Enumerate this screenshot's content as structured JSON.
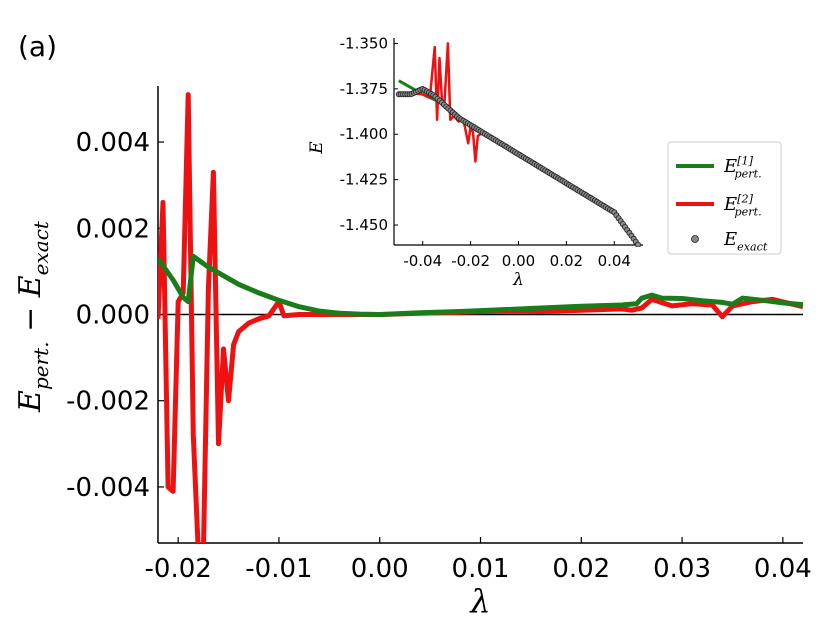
{
  "panel_label": "(a)",
  "chart_data": [
    {
      "type": "line",
      "title": "",
      "xlabel": "λ",
      "ylabel": "E_pert. − E_exact",
      "xlim": [
        -0.022,
        0.042
      ],
      "ylim": [
        -0.0053,
        0.0053
      ],
      "xticks": [
        -0.02,
        -0.01,
        0.0,
        0.01,
        0.02,
        0.03,
        0.04
      ],
      "xtick_labels": [
        "-0.02",
        "-0.01",
        "0.00",
        "0.01",
        "0.02",
        "0.03",
        "0.04"
      ],
      "yticks": [
        0.004,
        0.002,
        0.0,
        -0.002,
        -0.004
      ],
      "ytick_labels": [
        "0.004",
        "0.002",
        "0.000",
        "-0.002",
        "-0.004"
      ],
      "zero_line": true,
      "series": [
        {
          "name": "E_pert.^[1]",
          "color": "#1a7d1a",
          "points": [
            [
              -0.022,
              0.0013
            ],
            [
              -0.0205,
              0.0008
            ],
            [
              -0.0195,
              0.0004
            ],
            [
              -0.019,
              0.0003
            ],
            [
              -0.0185,
              0.00135
            ],
            [
              -0.017,
              0.0011
            ],
            [
              -0.0155,
              0.0009
            ],
            [
              -0.014,
              0.0007
            ],
            [
              -0.012,
              0.0005
            ],
            [
              -0.01,
              0.00033
            ],
            [
              -0.008,
              0.00018
            ],
            [
              -0.006,
              8e-05
            ],
            [
              -0.004,
              3e-05
            ],
            [
              -0.002,
              1e-05
            ],
            [
              0.0,
              0.0
            ],
            [
              0.004,
              4e-05
            ],
            [
              0.008,
              7e-05
            ],
            [
              0.012,
              0.00011
            ],
            [
              0.016,
              0.00015
            ],
            [
              0.02,
              0.00019
            ],
            [
              0.024,
              0.00022
            ],
            [
              0.0255,
              0.00025
            ],
            [
              0.026,
              0.00038
            ],
            [
              0.027,
              0.00045
            ],
            [
              0.028,
              0.00038
            ],
            [
              0.03,
              0.00037
            ],
            [
              0.032,
              0.00032
            ],
            [
              0.034,
              0.00028
            ],
            [
              0.035,
              0.00024
            ],
            [
              0.036,
              0.00038
            ],
            [
              0.038,
              0.00033
            ],
            [
              0.04,
              0.00027
            ],
            [
              0.042,
              0.00023
            ]
          ]
        },
        {
          "name": "E_pert.^[2]",
          "color": "#ee1111",
          "points": [
            [
              -0.022,
              -0.0001
            ],
            [
              -0.0215,
              0.0026
            ],
            [
              -0.021,
              -0.004
            ],
            [
              -0.0205,
              -0.0041
            ],
            [
              -0.02,
              0.0003
            ],
            [
              -0.0195,
              0.0005
            ],
            [
              -0.019,
              0.0051
            ],
            [
              -0.0185,
              -0.0028
            ],
            [
              -0.018,
              -0.0055
            ],
            [
              -0.0175,
              -0.0055
            ],
            [
              -0.017,
              0.0006
            ],
            [
              -0.0165,
              0.0033
            ],
            [
              -0.016,
              -0.003
            ],
            [
              -0.0155,
              -0.0008
            ],
            [
              -0.015,
              -0.002
            ],
            [
              -0.0145,
              -0.0007
            ],
            [
              -0.014,
              -0.0004
            ],
            [
              -0.013,
              -0.0002
            ],
            [
              -0.012,
              -0.0001
            ],
            [
              -0.011,
              -3e-05
            ],
            [
              -0.01,
              0.0003
            ],
            [
              -0.0095,
              -3e-05
            ],
            [
              -0.008,
              0.0
            ],
            [
              -0.004,
              0.0
            ],
            [
              0.0,
              0.0
            ],
            [
              0.004,
              3e-05
            ],
            [
              0.008,
              5e-05
            ],
            [
              0.012,
              8e-05
            ],
            [
              0.016,
              7e-05
            ],
            [
              0.02,
              0.0001
            ],
            [
              0.024,
              0.00013
            ],
            [
              0.025,
              0.0001
            ],
            [
              0.026,
              0.00015
            ],
            [
              0.027,
              0.00035
            ],
            [
              0.029,
              0.0002
            ],
            [
              0.031,
              0.00025
            ],
            [
              0.033,
              0.00022
            ],
            [
              0.034,
              -5e-05
            ],
            [
              0.035,
              0.0002
            ],
            [
              0.037,
              0.0003
            ],
            [
              0.039,
              0.00035
            ],
            [
              0.042,
              0.00018
            ]
          ]
        }
      ]
    },
    {
      "type": "line",
      "title": "",
      "xlabel": "λ",
      "ylabel": "E",
      "xlim": [
        -0.052,
        0.052
      ],
      "ylim": [
        -1.461,
        -1.347
      ],
      "xticks": [
        -0.04,
        -0.02,
        0.0,
        0.02,
        0.04
      ],
      "xtick_labels": [
        "-0.04",
        "-0.02",
        "0.00",
        "0.02",
        "0.04"
      ],
      "yticks": [
        -1.35,
        -1.375,
        -1.4,
        -1.425,
        -1.45
      ],
      "ytick_labels": [
        "-1.350",
        "-1.375",
        "-1.400",
        "-1.425",
        "-1.450"
      ],
      "series": [
        {
          "name": "E_pert.^[1]",
          "color": "#1a7d1a",
          "points": [
            [
              -0.05,
              -1.3705
            ],
            [
              -0.04,
              -1.378
            ],
            [
              -0.03,
              -1.384
            ],
            [
              -0.02,
              -1.396
            ],
            [
              0.0,
              -1.411
            ],
            [
              0.02,
              -1.427
            ],
            [
              0.04,
              -1.443
            ],
            [
              0.05,
              -1.4605
            ]
          ]
        },
        {
          "name": "E_pert.^[2]",
          "color": "#ee1111",
          "points": [
            [
              -0.05,
              -1.377
            ],
            [
              -0.04,
              -1.378
            ],
            [
              -0.037,
              -1.38
            ],
            [
              -0.035,
              -1.352
            ],
            [
              -0.034,
              -1.392
            ],
            [
              -0.033,
              -1.358
            ],
            [
              -0.032,
              -1.381
            ],
            [
              -0.031,
              -1.384
            ],
            [
              -0.0295,
              -1.35
            ],
            [
              -0.0285,
              -1.392
            ],
            [
              -0.027,
              -1.39
            ],
            [
              -0.025,
              -1.393
            ],
            [
              -0.023,
              -1.392
            ],
            [
              -0.021,
              -1.405
            ],
            [
              -0.02,
              -1.396
            ],
            [
              -0.019,
              -1.399
            ],
            [
              -0.018,
              -1.415
            ],
            [
              -0.017,
              -1.401
            ],
            [
              -0.015,
              -1.399
            ],
            [
              0.0,
              -1.411
            ],
            [
              0.02,
              -1.427
            ],
            [
              0.04,
              -1.443
            ],
            [
              0.05,
              -1.4605
            ]
          ]
        },
        {
          "name": "E_exact",
          "color": "#888888",
          "markers": true,
          "points": [
            [
              -0.05,
              -1.378
            ],
            [
              -0.045,
              -1.378
            ],
            [
              -0.04,
              -1.375
            ],
            [
              -0.035,
              -1.379
            ],
            [
              -0.03,
              -1.385
            ],
            [
              -0.025,
              -1.391
            ],
            [
              -0.02,
              -1.395
            ],
            [
              0.0,
              -1.411
            ],
            [
              0.02,
              -1.427
            ],
            [
              0.04,
              -1.443
            ],
            [
              0.05,
              -1.461
            ]
          ]
        }
      ]
    }
  ],
  "legend": {
    "placement": "right",
    "entries": [
      {
        "main": "E",
        "sub": "pert.",
        "sup": "[1]",
        "color": "#1a7d1a",
        "kind": "line"
      },
      {
        "main": "E",
        "sub": "pert.",
        "sup": "[2]",
        "color": "#ee1111",
        "kind": "line"
      },
      {
        "main": "E",
        "sub": "exact",
        "sup": "",
        "color": "#888888",
        "kind": "marker"
      }
    ]
  }
}
